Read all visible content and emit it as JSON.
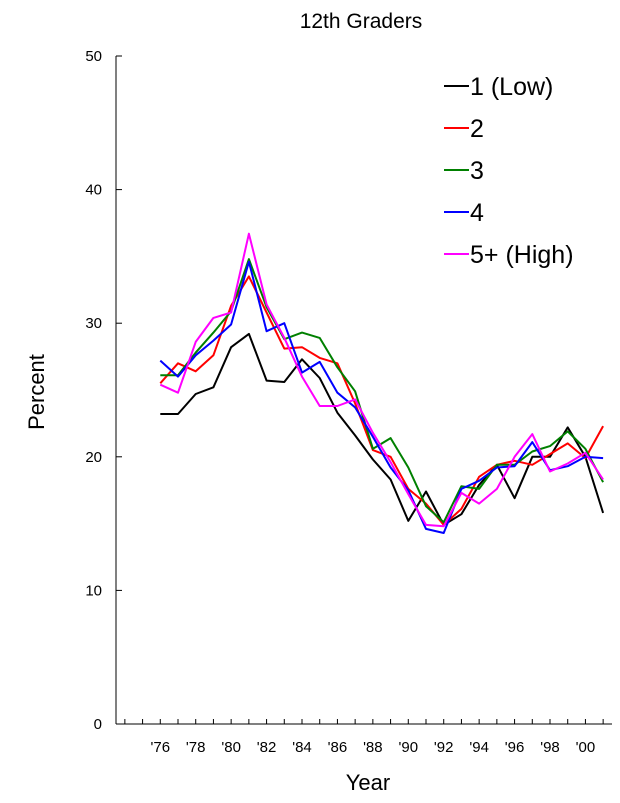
{
  "chart_data": {
    "type": "line",
    "title": "12th Graders",
    "xlabel": "Year",
    "ylabel": "Percent",
    "ylim": [
      0,
      50
    ],
    "xlim": [
      1973.5,
      2001.5
    ],
    "yticks": [
      0,
      10,
      20,
      30,
      40,
      50
    ],
    "yticklabels": [
      "0",
      "10",
      "20",
      "30",
      "40",
      "50"
    ],
    "xticks": [
      1976,
      1978,
      1980,
      1982,
      1984,
      1986,
      1988,
      1990,
      1992,
      1994,
      1996,
      1998,
      2000
    ],
    "xticklabels": [
      "'76",
      "'78",
      "'80",
      "'82",
      "'84",
      "'86",
      "'88",
      "'90",
      "'92",
      "'94",
      "'96",
      "'98",
      "'00"
    ],
    "grid": false,
    "legend_position": "top-right",
    "x": [
      1976,
      1977,
      1978,
      1979,
      1980,
      1981,
      1982,
      1983,
      1984,
      1985,
      1986,
      1987,
      1988,
      1989,
      1990,
      1991,
      1992,
      1993,
      1994,
      1995,
      1996,
      1997,
      1998,
      1999,
      2000,
      2001
    ],
    "series": [
      {
        "name": "1 (Low)",
        "color": "#000000",
        "values": [
          23.2,
          23.2,
          24.7,
          25.2,
          28.2,
          29.2,
          25.7,
          25.6,
          27.3,
          25.9,
          23.3,
          21.6,
          19.8,
          18.3,
          15.2,
          17.4,
          14.9,
          15.7,
          17.9,
          19.4,
          16.9,
          20.0,
          20.0,
          22.2,
          20.0,
          15.8
        ]
      },
      {
        "name": "2",
        "color": "#ff0000",
        "values": [
          25.5,
          27.0,
          26.4,
          27.6,
          31.3,
          33.5,
          30.8,
          28.1,
          28.2,
          27.4,
          27.0,
          24.0,
          20.5,
          20.0,
          17.6,
          16.5,
          14.9,
          16.1,
          18.5,
          19.4,
          19.7,
          19.4,
          20.2,
          21.0,
          19.9,
          22.3
        ]
      },
      {
        "name": "3",
        "color": "#008000",
        "values": [
          26.1,
          26.1,
          27.8,
          29.3,
          30.9,
          34.8,
          31.2,
          28.8,
          29.3,
          28.9,
          26.7,
          24.9,
          20.6,
          21.4,
          19.2,
          16.3,
          15.1,
          17.8,
          17.6,
          19.4,
          19.4,
          20.4,
          20.8,
          21.9,
          20.6,
          18.1
        ]
      },
      {
        "name": "4",
        "color": "#0000ff",
        "values": [
          27.2,
          26.0,
          27.6,
          28.7,
          29.9,
          34.6,
          29.4,
          30.0,
          26.3,
          27.1,
          24.8,
          23.7,
          21.5,
          19.2,
          17.5,
          14.6,
          14.3,
          17.6,
          18.2,
          19.2,
          19.3,
          21.1,
          19.0,
          19.3,
          20.0,
          19.9
        ]
      },
      {
        "name": "5+ (High)",
        "color": "#ff00ff",
        "values": [
          25.4,
          24.8,
          28.6,
          30.4,
          30.8,
          36.7,
          31.4,
          28.9,
          26.0,
          23.8,
          23.8,
          24.3,
          21.8,
          19.6,
          17.2,
          14.9,
          14.8,
          17.3,
          16.5,
          17.6,
          20.0,
          21.7,
          18.9,
          19.5,
          20.3,
          18.3
        ]
      }
    ]
  }
}
